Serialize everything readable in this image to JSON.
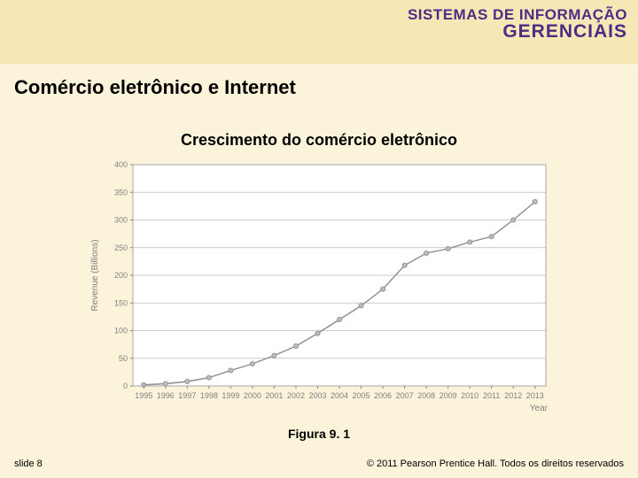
{
  "slide": {
    "background_color": "#fbf3da",
    "header_band_color": "#f7e7b6",
    "logo": {
      "line1": "SISTEMAS DE INFORMAÇÃO",
      "line2": "GERENCIAIS",
      "color": "#4b2e83"
    },
    "section_title": {
      "text": "Comércio eletrônico e Internet",
      "color": "#000000",
      "fontsize": 22
    },
    "chart_title": {
      "text": "Crescimento do comércio eletrônico",
      "color": "#000000",
      "fontsize": 18
    },
    "figure_label": {
      "text": "Figura 9. 1",
      "color": "#000000",
      "fontsize": 14
    },
    "footer_left": {
      "text": "slide 8",
      "color": "#000000"
    },
    "footer_right": {
      "text": "© 2011 Pearson Prentice Hall. Todos os direitos reservados",
      "color": "#000000"
    }
  },
  "chart": {
    "type": "line",
    "plot_bg": "#ffffff",
    "frame_color": "#a7a7a7",
    "grid_color": "#bcbcbc",
    "line_color": "#8c8c8c",
    "marker_color": "#bcbcbc",
    "text_color": "#808080",
    "line_width": 1.4,
    "marker_radius": 2.6,
    "axis_fontsize": 9,
    "label_fontsize": 10,
    "y": {
      "label": "Revenue (Billions)",
      "min": 0,
      "max": 400,
      "step": 50,
      "ticks": [
        0,
        50,
        100,
        150,
        200,
        250,
        300,
        350,
        400
      ]
    },
    "x": {
      "label": "Year",
      "categories": [
        "1995",
        "1996",
        "1997",
        "1998",
        "1999",
        "2000",
        "2001",
        "2002",
        "2003",
        "2004",
        "2005",
        "2006",
        "2007",
        "2008",
        "2009",
        "2010",
        "2011",
        "2012",
        "2013"
      ]
    },
    "series": [
      {
        "name": "revenue",
        "values": [
          2,
          4,
          8,
          15,
          28,
          40,
          55,
          72,
          95,
          120,
          145,
          175,
          218,
          240,
          248,
          260,
          270,
          300,
          333
        ]
      }
    ]
  }
}
